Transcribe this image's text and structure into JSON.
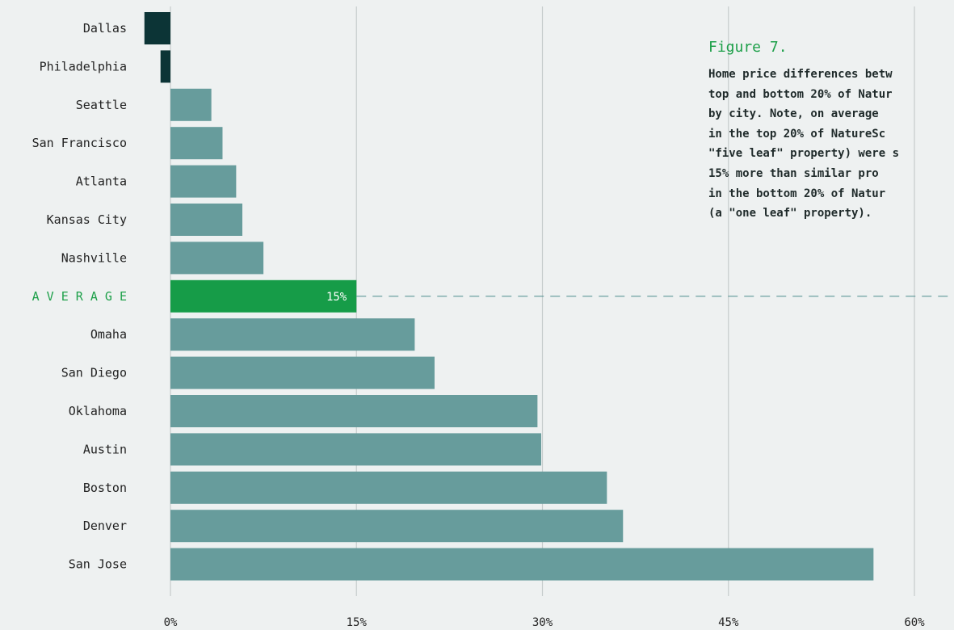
{
  "chart_data": {
    "type": "bar",
    "orientation": "horizontal",
    "categories": [
      "Dallas",
      "Philadelphia",
      "Seattle",
      "San Francisco",
      "Atlanta",
      "Kansas City",
      "Nashville",
      "A V E R A G E",
      "Omaha",
      "San Diego",
      "Oklahoma",
      "Austin",
      "Boston",
      "Denver",
      "San Jose"
    ],
    "values": [
      -2.1,
      -0.8,
      3.3,
      4.2,
      5.3,
      5.8,
      7.5,
      15,
      19.7,
      21.3,
      29.6,
      29.9,
      35.2,
      36.5,
      56.7
    ],
    "highlight_index": 7,
    "average_label": "15%",
    "xlim": [
      -4,
      63
    ],
    "xticks": [
      0,
      15,
      30,
      45,
      60
    ],
    "xtick_labels": [
      "0%",
      "15%",
      "30%",
      "45%",
      "60%"
    ],
    "grid": "vertical",
    "average_reference_line": "dashed",
    "title": "",
    "xlabel": "",
    "ylabel": "",
    "colors": {
      "background": "#eef1f1",
      "positive_bar": "#679c9c",
      "negative_bar": "#0c3436",
      "average_bar": "#169c48",
      "average_label": "#1ea04a",
      "grid": "#c6cccc",
      "text": "#222222"
    }
  },
  "caption": {
    "title": "Figure 7.",
    "lines": [
      "Home price differences betw",
      "top and bottom 20% of Natur",
      "by city.  Note, on average",
      "in the top 20% of NatureSc",
      "\"five leaf\" property) were s",
      "15% more than similar pro",
      "in the bottom 20% of Natur",
      "(a \"one leaf\" property)."
    ]
  }
}
